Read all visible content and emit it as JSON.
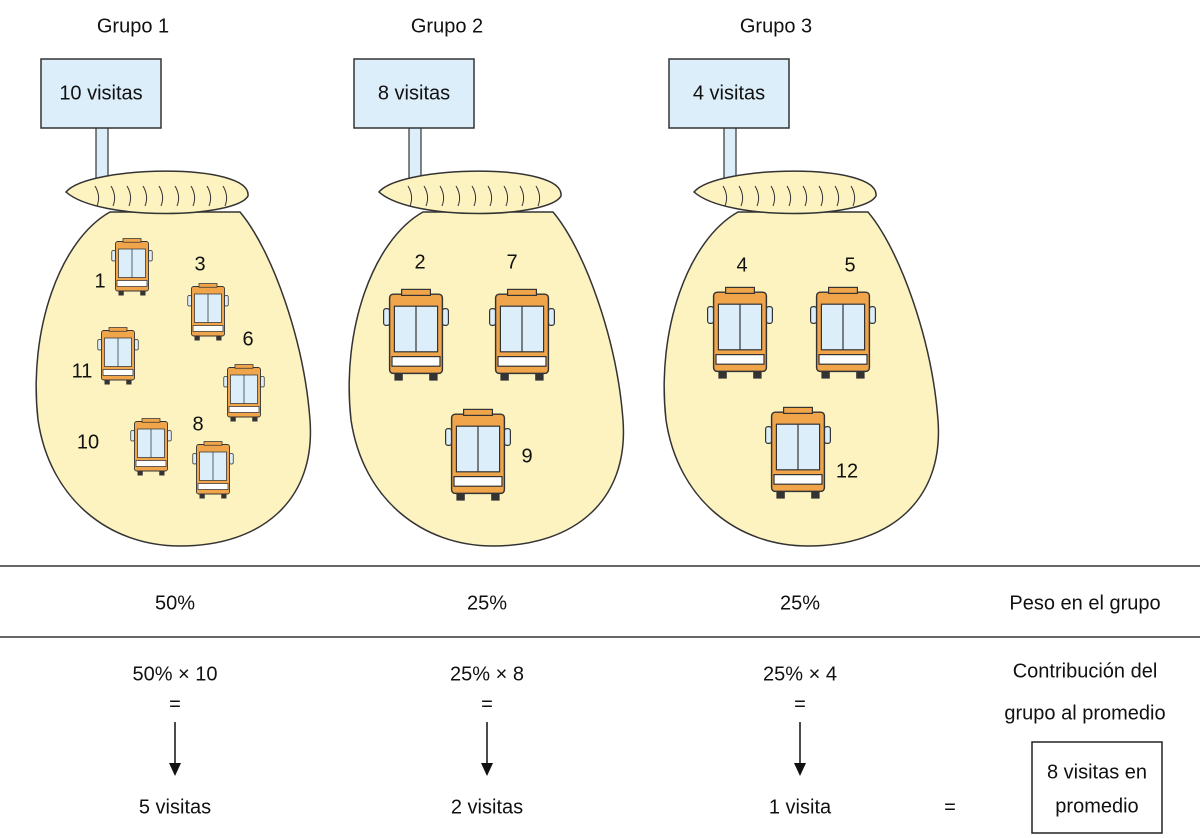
{
  "groups": [
    {
      "title": "Grupo 1",
      "sign": "10 visitas",
      "buses": [
        1,
        3,
        11,
        6,
        10,
        8
      ],
      "weight": "50%",
      "formula": "50% × 10",
      "equals": "=",
      "result": "5 visitas"
    },
    {
      "title": "Grupo 2",
      "sign": "8 visitas",
      "buses": [
        2,
        7,
        9
      ],
      "weight": "25%",
      "formula": "25% × 8",
      "equals": "=",
      "result": "2 visitas"
    },
    {
      "title": "Grupo 3",
      "sign": "4 visitas",
      "buses": [
        4,
        5,
        12
      ],
      "weight": "25%",
      "formula": "25% × 4",
      "equals": "=",
      "result": "1 visita"
    }
  ],
  "row_labels": {
    "weight": "Peso en el grupo",
    "contribution": [
      "Contribución del",
      "grupo al promedio"
    ]
  },
  "total": {
    "equals": "=",
    "text": [
      "8 visitas en",
      "promedio"
    ]
  }
}
